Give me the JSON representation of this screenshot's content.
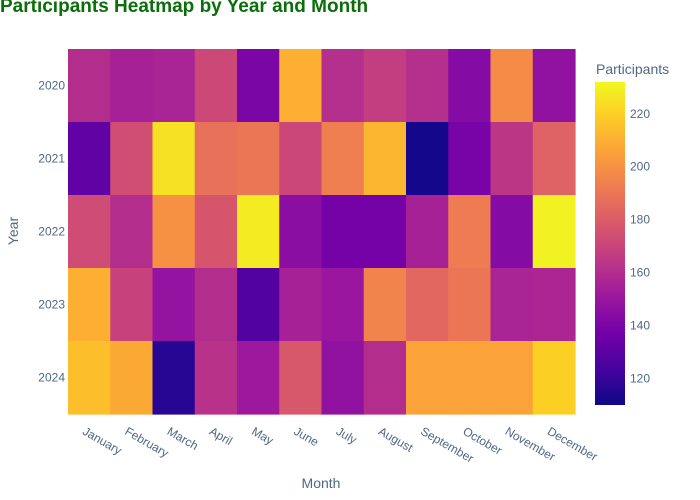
{
  "chart_data": {
    "type": "heatmap",
    "title": "Participants Heatmap by Year and Month",
    "xlabel": "Month",
    "ylabel": "Year",
    "x_categories": [
      "January",
      "February",
      "March",
      "April",
      "May",
      "June",
      "July",
      "August",
      "September",
      "October",
      "November",
      "December"
    ],
    "y_categories": [
      "2020",
      "2021",
      "2022",
      "2023",
      "2024"
    ],
    "values": [
      [
        160,
        155,
        156,
        172,
        140,
        210,
        161,
        167,
        161,
        143,
        198,
        147
      ],
      [
        132,
        174,
        225,
        188,
        190,
        171,
        193,
        212,
        112,
        139,
        164,
        182
      ],
      [
        173,
        160,
        200,
        177,
        228,
        145,
        138,
        138,
        155,
        192,
        143,
        230
      ],
      [
        210,
        169,
        148,
        160,
        127,
        155,
        150,
        195,
        184,
        190,
        156,
        157
      ],
      [
        215,
        208,
        116,
        162,
        151,
        178,
        147,
        160,
        206,
        206,
        206,
        220
      ]
    ],
    "colorbar": {
      "title": "Participants",
      "min": 110,
      "max": 232,
      "ticks": [
        120,
        140,
        160,
        180,
        200,
        220
      ]
    },
    "colorscale": [
      "#0d0887",
      "#46039f",
      "#7201a8",
      "#9c179e",
      "#bd3786",
      "#d8576b",
      "#ed7953",
      "#fb9f3a",
      "#fdca26",
      "#f0f921"
    ],
    "title_color": "#0a6e0a"
  }
}
